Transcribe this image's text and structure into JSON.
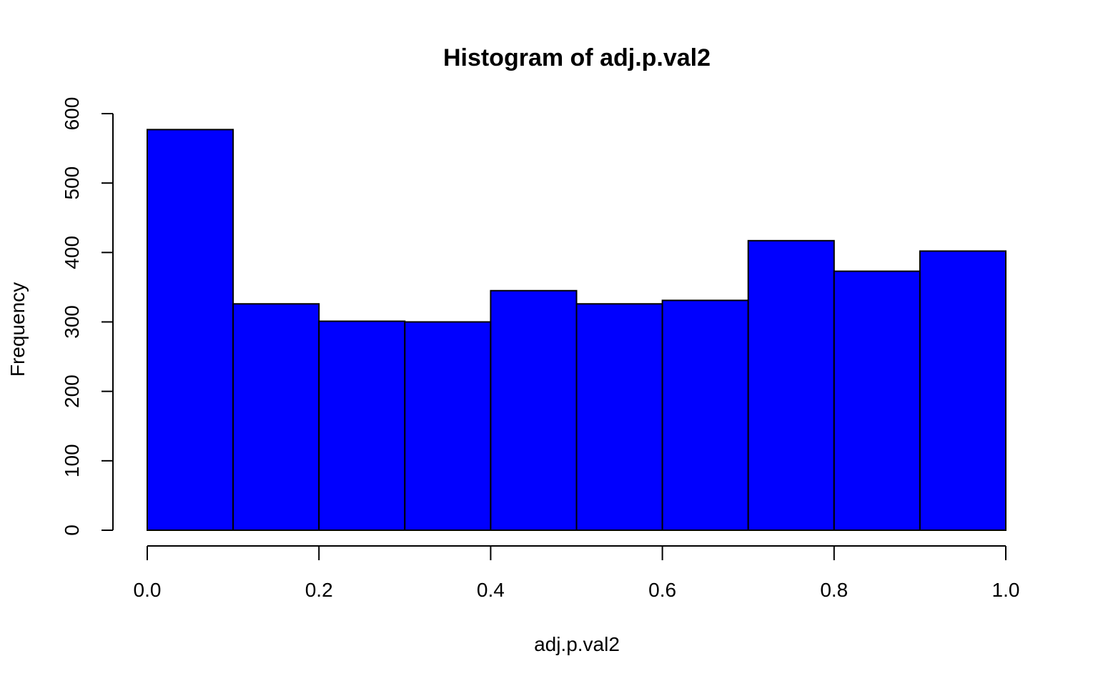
{
  "chart_data": {
    "type": "bar",
    "title": "Histogram of adj.p.val2",
    "xlabel": "adj.p.val2",
    "ylabel": "Frequency",
    "bin_edges": [
      0.0,
      0.1,
      0.2,
      0.3,
      0.4,
      0.5,
      0.6,
      0.7,
      0.8,
      0.9,
      1.0
    ],
    "values": [
      577,
      326,
      301,
      300,
      345,
      326,
      331,
      417,
      373,
      402
    ],
    "xlim": [
      0,
      1
    ],
    "ylim": [
      0,
      600
    ],
    "x_ticks": [
      0.0,
      0.2,
      0.4,
      0.6,
      0.8,
      1.0
    ],
    "x_tick_labels": [
      "0.0",
      "0.2",
      "0.4",
      "0.6",
      "0.8",
      "1.0"
    ],
    "y_ticks": [
      0,
      100,
      200,
      300,
      400,
      500,
      600
    ],
    "y_tick_labels": [
      "0",
      "100",
      "200",
      "300",
      "400",
      "500",
      "600"
    ],
    "bar_color": "#0000ff",
    "edge_color": "#000000",
    "grid": false,
    "legend": "none"
  }
}
